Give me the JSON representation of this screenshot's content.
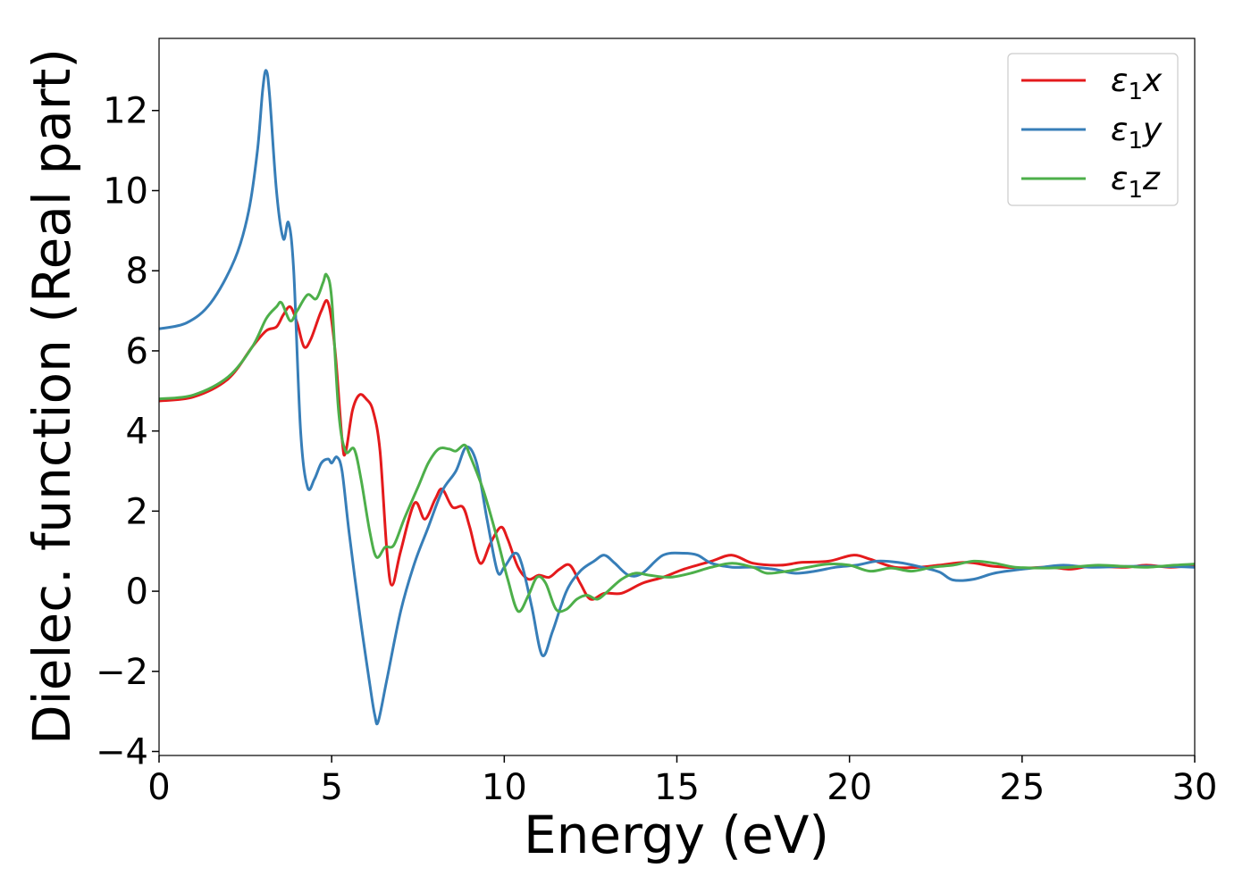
{
  "chart_data": {
    "type": "line",
    "title": "",
    "xlabel": "Energy (eV)",
    "ylabel": "Dielec. function (Real part)",
    "xlim": [
      0,
      30
    ],
    "ylim": [
      -4.1,
      13.8
    ],
    "xticks": [
      0,
      5,
      10,
      15,
      20,
      25,
      30
    ],
    "yticks": [
      -4,
      -2,
      0,
      2,
      4,
      6,
      8,
      10,
      12
    ],
    "xtick_labels": [
      "0",
      "5",
      "10",
      "15",
      "20",
      "25",
      "30"
    ],
    "ytick_labels": [
      "−4",
      "−2",
      "0",
      "2",
      "4",
      "6",
      "8",
      "10",
      "12"
    ],
    "grid": false,
    "legend_position": "top-right",
    "series": [
      {
        "name": "ε1x",
        "legend_base": "ε",
        "legend_sub": "1",
        "legend_suffix": "x",
        "color": "#e41a1c",
        "points": [
          [
            0,
            4.75
          ],
          [
            1,
            4.85
          ],
          [
            2,
            5.3
          ],
          [
            2.7,
            6.1
          ],
          [
            3.1,
            6.5
          ],
          [
            3.4,
            6.6
          ],
          [
            3.6,
            6.9
          ],
          [
            3.8,
            7.1
          ],
          [
            4.0,
            6.7
          ],
          [
            4.2,
            6.1
          ],
          [
            4.4,
            6.3
          ],
          [
            4.7,
            7.0
          ],
          [
            4.9,
            7.2
          ],
          [
            5.1,
            6.0
          ],
          [
            5.3,
            3.8
          ],
          [
            5.4,
            3.45
          ],
          [
            5.6,
            4.5
          ],
          [
            5.8,
            4.9
          ],
          [
            6.0,
            4.8
          ],
          [
            6.2,
            4.5
          ],
          [
            6.4,
            3.5
          ],
          [
            6.6,
            1.0
          ],
          [
            6.75,
            0.15
          ],
          [
            7.0,
            1.0
          ],
          [
            7.4,
            2.2
          ],
          [
            7.7,
            1.8
          ],
          [
            8.0,
            2.3
          ],
          [
            8.2,
            2.55
          ],
          [
            8.5,
            2.1
          ],
          [
            8.8,
            2.1
          ],
          [
            9.0,
            1.6
          ],
          [
            9.3,
            0.7
          ],
          [
            9.6,
            1.2
          ],
          [
            9.9,
            1.6
          ],
          [
            10.1,
            1.3
          ],
          [
            10.4,
            0.6
          ],
          [
            10.7,
            0.3
          ],
          [
            11.0,
            0.4
          ],
          [
            11.3,
            0.35
          ],
          [
            11.6,
            0.55
          ],
          [
            11.9,
            0.65
          ],
          [
            12.2,
            0.2
          ],
          [
            12.5,
            -0.2
          ],
          [
            12.9,
            -0.05
          ],
          [
            13.4,
            -0.05
          ],
          [
            14.0,
            0.2
          ],
          [
            14.6,
            0.35
          ],
          [
            15.2,
            0.55
          ],
          [
            16.0,
            0.75
          ],
          [
            16.6,
            0.9
          ],
          [
            17.2,
            0.7
          ],
          [
            18.0,
            0.65
          ],
          [
            18.6,
            0.72
          ],
          [
            19.4,
            0.75
          ],
          [
            20.1,
            0.9
          ],
          [
            20.6,
            0.8
          ],
          [
            21.3,
            0.6
          ],
          [
            22.0,
            0.6
          ],
          [
            22.6,
            0.65
          ],
          [
            23.4,
            0.72
          ],
          [
            24.2,
            0.62
          ],
          [
            25.0,
            0.58
          ],
          [
            25.8,
            0.6
          ],
          [
            26.4,
            0.55
          ],
          [
            27.0,
            0.62
          ],
          [
            28.0,
            0.6
          ],
          [
            28.6,
            0.65
          ],
          [
            29.3,
            0.6
          ],
          [
            30,
            0.65
          ]
        ]
      },
      {
        "name": "ε1y",
        "legend_base": "ε",
        "legend_sub": "1",
        "legend_suffix": "y",
        "color": "#377eb8",
        "points": [
          [
            0,
            6.55
          ],
          [
            0.8,
            6.7
          ],
          [
            1.5,
            7.2
          ],
          [
            2.2,
            8.3
          ],
          [
            2.6,
            9.5
          ],
          [
            2.85,
            11.0
          ],
          [
            3.0,
            12.5
          ],
          [
            3.1,
            13.0
          ],
          [
            3.2,
            12.4
          ],
          [
            3.4,
            10.0
          ],
          [
            3.6,
            8.8
          ],
          [
            3.75,
            9.2
          ],
          [
            3.9,
            8.0
          ],
          [
            4.1,
            4.0
          ],
          [
            4.3,
            2.6
          ],
          [
            4.5,
            2.8
          ],
          [
            4.7,
            3.2
          ],
          [
            4.9,
            3.3
          ],
          [
            5.0,
            3.2
          ],
          [
            5.15,
            3.35
          ],
          [
            5.3,
            3.0
          ],
          [
            5.5,
            1.5
          ],
          [
            5.8,
            -0.5
          ],
          [
            6.1,
            -2.3
          ],
          [
            6.25,
            -3.1
          ],
          [
            6.35,
            -3.25
          ],
          [
            6.6,
            -2.2
          ],
          [
            7.0,
            -0.5
          ],
          [
            7.4,
            0.7
          ],
          [
            7.8,
            1.6
          ],
          [
            8.2,
            2.5
          ],
          [
            8.6,
            3.0
          ],
          [
            8.9,
            3.6
          ],
          [
            9.2,
            3.2
          ],
          [
            9.5,
            1.8
          ],
          [
            9.8,
            0.5
          ],
          [
            10.0,
            0.6
          ],
          [
            10.3,
            0.95
          ],
          [
            10.5,
            0.7
          ],
          [
            10.8,
            -0.4
          ],
          [
            11.1,
            -1.6
          ],
          [
            11.4,
            -1.0
          ],
          [
            11.8,
            0.0
          ],
          [
            12.2,
            0.5
          ],
          [
            12.6,
            0.75
          ],
          [
            12.9,
            0.9
          ],
          [
            13.2,
            0.7
          ],
          [
            13.6,
            0.4
          ],
          [
            14.0,
            0.45
          ],
          [
            14.6,
            0.9
          ],
          [
            15.2,
            0.95
          ],
          [
            15.6,
            0.9
          ],
          [
            16.0,
            0.7
          ],
          [
            16.6,
            0.6
          ],
          [
            17.2,
            0.6
          ],
          [
            17.8,
            0.55
          ],
          [
            18.4,
            0.45
          ],
          [
            19.0,
            0.5
          ],
          [
            19.6,
            0.6
          ],
          [
            20.2,
            0.65
          ],
          [
            20.8,
            0.75
          ],
          [
            21.4,
            0.72
          ],
          [
            22.0,
            0.62
          ],
          [
            22.6,
            0.48
          ],
          [
            23.0,
            0.28
          ],
          [
            23.6,
            0.3
          ],
          [
            24.2,
            0.45
          ],
          [
            25.0,
            0.55
          ],
          [
            25.6,
            0.6
          ],
          [
            26.2,
            0.65
          ],
          [
            27.0,
            0.6
          ],
          [
            28.0,
            0.62
          ],
          [
            29.0,
            0.62
          ],
          [
            30,
            0.6
          ]
        ]
      },
      {
        "name": "ε1z",
        "legend_base": "ε",
        "legend_sub": "1",
        "legend_suffix": "z",
        "color": "#4daf4a",
        "points": [
          [
            0,
            4.8
          ],
          [
            1,
            4.9
          ],
          [
            2,
            5.35
          ],
          [
            2.7,
            6.1
          ],
          [
            3.1,
            6.8
          ],
          [
            3.4,
            7.1
          ],
          [
            3.55,
            7.2
          ],
          [
            3.8,
            6.75
          ],
          [
            4.0,
            7.0
          ],
          [
            4.3,
            7.4
          ],
          [
            4.55,
            7.3
          ],
          [
            4.75,
            7.7
          ],
          [
            4.85,
            7.9
          ],
          [
            5.0,
            7.3
          ],
          [
            5.2,
            4.5
          ],
          [
            5.4,
            3.5
          ],
          [
            5.65,
            3.55
          ],
          [
            5.85,
            2.8
          ],
          [
            6.1,
            1.5
          ],
          [
            6.3,
            0.85
          ],
          [
            6.55,
            1.1
          ],
          [
            6.8,
            1.15
          ],
          [
            7.1,
            1.8
          ],
          [
            7.5,
            2.6
          ],
          [
            7.8,
            3.2
          ],
          [
            8.1,
            3.55
          ],
          [
            8.4,
            3.55
          ],
          [
            8.6,
            3.5
          ],
          [
            8.85,
            3.65
          ],
          [
            9.0,
            3.4
          ],
          [
            9.4,
            2.5
          ],
          [
            9.8,
            1.3
          ],
          [
            10.1,
            0.3
          ],
          [
            10.4,
            -0.5
          ],
          [
            10.7,
            -0.1
          ],
          [
            10.95,
            0.35
          ],
          [
            11.2,
            0.2
          ],
          [
            11.5,
            -0.45
          ],
          [
            11.8,
            -0.45
          ],
          [
            12.1,
            -0.2
          ],
          [
            12.4,
            -0.1
          ],
          [
            12.7,
            -0.2
          ],
          [
            13.0,
            0.0
          ],
          [
            13.4,
            0.3
          ],
          [
            13.8,
            0.45
          ],
          [
            14.2,
            0.4
          ],
          [
            14.8,
            0.35
          ],
          [
            15.4,
            0.45
          ],
          [
            16.0,
            0.6
          ],
          [
            16.6,
            0.7
          ],
          [
            17.2,
            0.6
          ],
          [
            17.6,
            0.45
          ],
          [
            18.2,
            0.5
          ],
          [
            18.8,
            0.6
          ],
          [
            19.4,
            0.68
          ],
          [
            20.0,
            0.65
          ],
          [
            20.6,
            0.5
          ],
          [
            21.2,
            0.58
          ],
          [
            21.8,
            0.5
          ],
          [
            22.4,
            0.6
          ],
          [
            23.0,
            0.65
          ],
          [
            23.6,
            0.75
          ],
          [
            24.2,
            0.7
          ],
          [
            24.8,
            0.6
          ],
          [
            25.6,
            0.58
          ],
          [
            26.4,
            0.6
          ],
          [
            27.2,
            0.65
          ],
          [
            28.0,
            0.62
          ],
          [
            28.6,
            0.6
          ],
          [
            29.4,
            0.65
          ],
          [
            30,
            0.68
          ]
        ]
      }
    ]
  }
}
